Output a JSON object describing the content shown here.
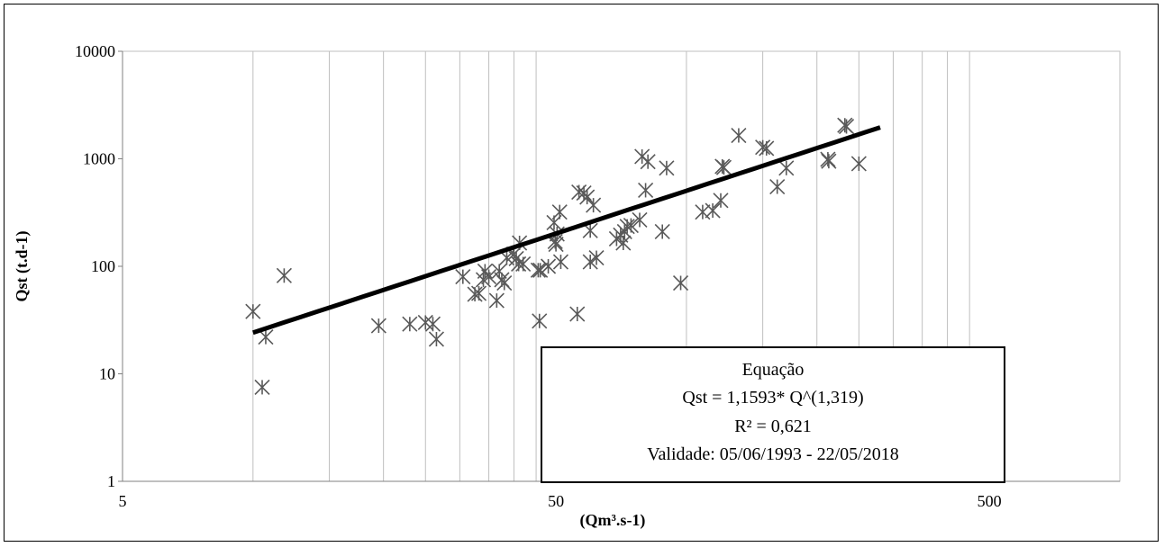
{
  "chart_data": {
    "type": "scatter",
    "xlabel": "(Qm³.s-1)",
    "ylabel": "Qst (t.d-1)",
    "x_scale": "log",
    "y_scale": "log",
    "xlim": [
      5,
      1000
    ],
    "ylim": [
      1,
      10000
    ],
    "x_ticks": [
      "5",
      "50",
      "500"
    ],
    "y_ticks": [
      "1",
      "10",
      "100",
      "1000",
      "10000"
    ],
    "grid": "vertical minor gridlines",
    "series": [
      {
        "marker": "asterisk",
        "color": "#595959",
        "points": [
          [
            10,
            38
          ],
          [
            10.5,
            7.5
          ],
          [
            10.7,
            22
          ],
          [
            11.8,
            82
          ],
          [
            19.5,
            28
          ],
          [
            23,
            29
          ],
          [
            25,
            30
          ],
          [
            26,
            29
          ],
          [
            26.5,
            21
          ],
          [
            30.5,
            80
          ],
          [
            32.5,
            55
          ],
          [
            33.2,
            56
          ],
          [
            34,
            75
          ],
          [
            34.3,
            90
          ],
          [
            35,
            80
          ],
          [
            36.5,
            48
          ],
          [
            37,
            90
          ],
          [
            37.5,
            75
          ],
          [
            38,
            70
          ],
          [
            38.5,
            120
          ],
          [
            40,
            130
          ],
          [
            40.5,
            118
          ],
          [
            41,
            105
          ],
          [
            41.2,
            165
          ],
          [
            42,
            105
          ],
          [
            45.5,
            92
          ],
          [
            45.8,
            31
          ],
          [
            46,
            92
          ],
          [
            48,
            100
          ],
          [
            49.5,
            255
          ],
          [
            49.8,
            170
          ],
          [
            50,
            160
          ],
          [
            50.3,
            200
          ],
          [
            51,
            320
          ],
          [
            51.3,
            110
          ],
          [
            56,
            36
          ],
          [
            56.5,
            490
          ],
          [
            58,
            480
          ],
          [
            59,
            440
          ],
          [
            60,
            215
          ],
          [
            60,
            110
          ],
          [
            61,
            370
          ],
          [
            62,
            120
          ],
          [
            69,
            180
          ],
          [
            70.5,
            195
          ],
          [
            71.5,
            165
          ],
          [
            72,
            210
          ],
          [
            73,
            235
          ],
          [
            74.5,
            240
          ],
          [
            78,
            270
          ],
          [
            79,
            1050
          ],
          [
            80.5,
            510
          ],
          [
            81.5,
            940
          ],
          [
            88,
            210
          ],
          [
            90,
            820
          ],
          [
            97,
            70
          ],
          [
            109,
            320
          ],
          [
            115,
            330
          ],
          [
            120,
            410
          ],
          [
            121,
            850
          ],
          [
            122,
            830
          ],
          [
            132,
            1650
          ],
          [
            150,
            1280
          ],
          [
            153,
            1250
          ],
          [
            162,
            550
          ],
          [
            170,
            820
          ],
          [
            212,
            990
          ],
          [
            213,
            950
          ],
          [
            232,
            2050
          ],
          [
            234,
            2000
          ],
          [
            250,
            900
          ]
        ]
      },
      {
        "name": "trend",
        "type": "line",
        "color": "#000000",
        "equation": {
          "a": 1.1593,
          "b": 1.319
        },
        "x_range": [
          10,
          280
        ]
      }
    ],
    "annotation": {
      "lines": [
        "Equação",
        "Qst =  1,1593* Q^(1,319)",
        "R² = 0,621",
        "Validade: 05/06/1993 - 22/05/2018"
      ]
    }
  }
}
